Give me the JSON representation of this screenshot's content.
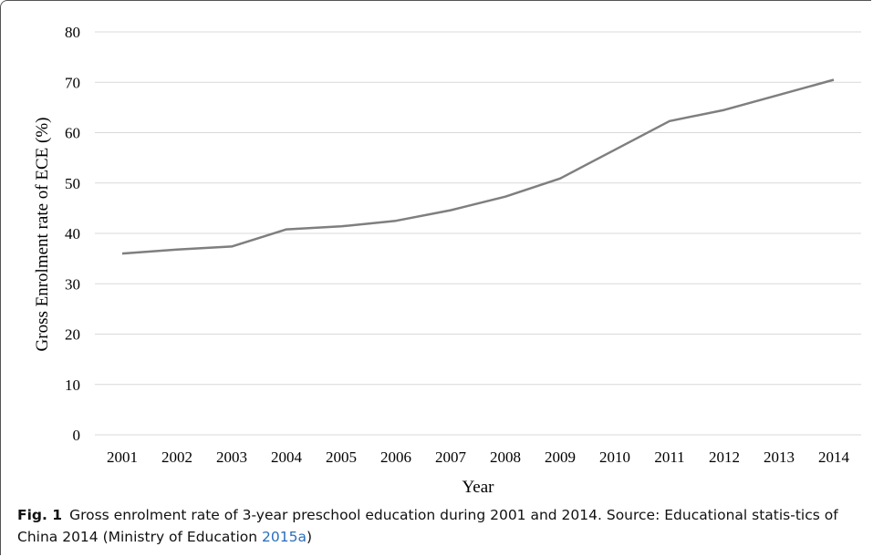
{
  "chart_data": {
    "type": "line",
    "x": [
      "2001",
      "2002",
      "2003",
      "2004",
      "2005",
      "2006",
      "2007",
      "2008",
      "2009",
      "2010",
      "2011",
      "2012",
      "2013",
      "2014"
    ],
    "series": [
      {
        "values": [
          36.0,
          36.8,
          37.4,
          40.8,
          41.4,
          42.5,
          44.6,
          47.3,
          50.9,
          56.6,
          62.3,
          64.5,
          67.5,
          70.5
        ]
      }
    ],
    "xlabel": "Year",
    "ylabel": "Gross Enrolment rate of ECE (%)",
    "ylim": [
      0,
      80
    ],
    "yticks": [
      0,
      10,
      20,
      30,
      40,
      50,
      60,
      70,
      80
    ],
    "grid": true,
    "line_color": "#7f7f7f",
    "grid_color": "#d9d9d9"
  },
  "caption": {
    "label": "Fig. 1",
    "text": "Gross enrolment rate of 3-year preschool education during 2001 and 2014. Source: Educational statis-tics of China 2014 (Ministry of Education ",
    "ref": "2015a",
    "close": ")"
  }
}
